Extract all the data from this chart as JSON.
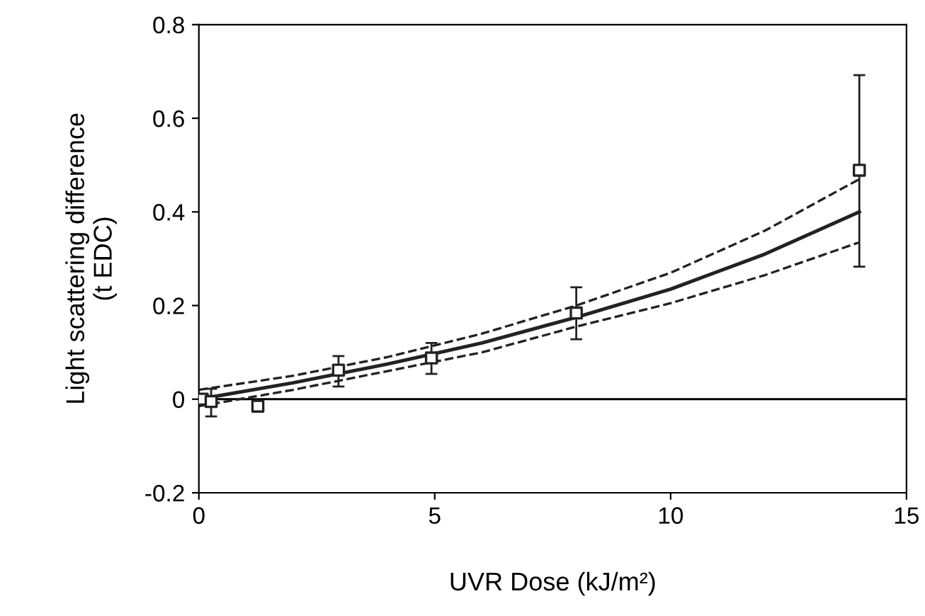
{
  "chart_data": {
    "type": "scatter",
    "xlabel": "UVR Dose (kJ/m²)",
    "ylabel": "Light scattering difference\n(t EDC)",
    "xlim": [
      0,
      15
    ],
    "ylim": [
      -0.2,
      0.8
    ],
    "xticks": [
      0,
      5,
      10,
      15
    ],
    "yticks": [
      -0.2,
      0,
      0.2,
      0.4,
      0.6,
      0.8
    ],
    "grid": false,
    "legend": false,
    "ref_lines": [
      {
        "axis": "y",
        "value": 0,
        "color": "#000000",
        "line_style": "solid"
      }
    ],
    "series": [
      {
        "type": "line",
        "color": "#222222",
        "line_style": "solid",
        "marker": "none",
        "x": [
          0,
          2,
          4,
          6,
          8,
          10,
          12,
          14
        ],
        "values": [
          0,
          0.035,
          0.075,
          0.12,
          0.175,
          0.235,
          0.31,
          0.4
        ]
      },
      {
        "type": "line",
        "color": "#222222",
        "line_style": "dashed",
        "marker": "none",
        "x": [
          0,
          2,
          4,
          6,
          8,
          10,
          12,
          14
        ],
        "values": [
          0.02,
          0.05,
          0.09,
          0.14,
          0.2,
          0.27,
          0.36,
          0.47
        ]
      },
      {
        "type": "line",
        "color": "#222222",
        "line_style": "dashed",
        "marker": "none",
        "x": [
          0,
          2,
          4,
          6,
          8,
          10,
          12,
          14
        ],
        "values": [
          -0.015,
          0.02,
          0.06,
          0.1,
          0.155,
          0.205,
          0.265,
          0.335
        ]
      },
      {
        "color": "#222222",
        "marker": "square",
        "x": [
          0.07,
          0.26,
          1.25,
          2.96,
          4.93,
          8,
          14
        ],
        "values": [
          0,
          -0.005,
          -0.015,
          0.062,
          0.088,
          0.184,
          0.489
        ],
        "errors": [
          null,
          [
            -0.037,
            0.022
          ],
          null,
          [
            0.027,
            0.092
          ],
          [
            0.054,
            0.12
          ],
          [
            0.128,
            0.239
          ],
          [
            0.283,
            0.692
          ]
        ]
      }
    ]
  }
}
